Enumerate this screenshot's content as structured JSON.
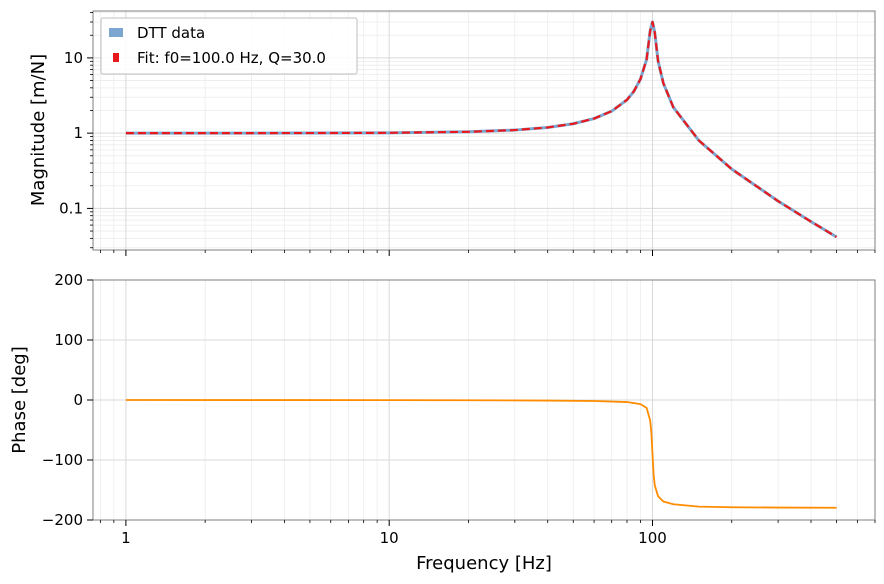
{
  "chart_data": [
    {
      "type": "line",
      "panel": "magnitude",
      "xlabel": "",
      "ylabel": "Magnitude [m/N]",
      "x_scale": "log",
      "y_scale": "log",
      "xlim": [
        0.75,
        700
      ],
      "ylim": [
        0.028,
        42
      ],
      "yticks": [
        0.1,
        1,
        10
      ],
      "ytick_labels": [
        "0.1",
        "1",
        "10"
      ],
      "grid": true,
      "legend": {
        "placement": "top-left",
        "entries": [
          "DTT data",
          "Fit: f0=100.0 Hz, Q=30.0"
        ]
      },
      "series": [
        {
          "name": "DTT data",
          "color": "#7ba6d0",
          "style": "solid",
          "x": [
            1,
            2,
            5,
            10,
            20,
            30,
            40,
            50,
            60,
            70,
            80,
            85,
            90,
            95,
            98,
            100,
            102,
            105,
            110,
            120,
            150,
            200,
            300,
            400,
            500
          ],
          "y": [
            1.0,
            1.0,
            1.003,
            1.01,
            1.042,
            1.099,
            1.19,
            1.333,
            1.562,
            1.96,
            2.774,
            3.597,
            5.221,
            9.588,
            22.96,
            30.0,
            21.81,
            9.086,
            4.591,
            2.207,
            0.799,
            0.333,
            0.125,
            0.0667,
            0.0417
          ]
        },
        {
          "name": "Fit: f0=100.0 Hz, Q=30.0",
          "color": "#e8191c",
          "style": "dashed",
          "x": [
            1,
            2,
            5,
            10,
            20,
            30,
            40,
            50,
            60,
            70,
            80,
            85,
            90,
            95,
            98,
            100,
            102,
            105,
            110,
            120,
            150,
            200,
            300,
            400,
            500
          ],
          "y": [
            1.0,
            1.0,
            1.003,
            1.01,
            1.042,
            1.099,
            1.19,
            1.333,
            1.562,
            1.96,
            2.774,
            3.597,
            5.221,
            9.588,
            22.96,
            30.0,
            21.81,
            9.086,
            4.591,
            2.207,
            0.799,
            0.333,
            0.125,
            0.0667,
            0.0417
          ]
        }
      ]
    },
    {
      "type": "line",
      "panel": "phase",
      "xlabel": "Frequency [Hz]",
      "ylabel": "Phase [deg]",
      "x_scale": "log",
      "y_scale": "linear",
      "xlim": [
        0.75,
        700
      ],
      "ylim": [
        -200,
        200
      ],
      "xticks": [
        1,
        10,
        100
      ],
      "xtick_labels": [
        "1",
        "10",
        "100"
      ],
      "yticks": [
        -200,
        -100,
        0,
        100,
        200
      ],
      "ytick_labels": [
        "−200",
        "−100",
        "0",
        "100",
        "200"
      ],
      "grid": true,
      "series": [
        {
          "name": "",
          "color": "#ff8c00",
          "style": "solid",
          "x": [
            1,
            5,
            10,
            20,
            40,
            60,
            80,
            90,
            95,
            98,
            99,
            100,
            101,
            102,
            105,
            110,
            120,
            150,
            200,
            300,
            500
          ],
          "y": [
            0,
            -0.1,
            -0.2,
            -0.4,
            -0.9,
            -1.7,
            -3.4,
            -6.8,
            -13.2,
            -34.2,
            -53.6,
            -90,
            -124.1,
            -142.2,
            -160.4,
            -169.1,
            -173.8,
            -177.7,
            -178.7,
            -179.3,
            -179.6
          ]
        }
      ]
    }
  ]
}
